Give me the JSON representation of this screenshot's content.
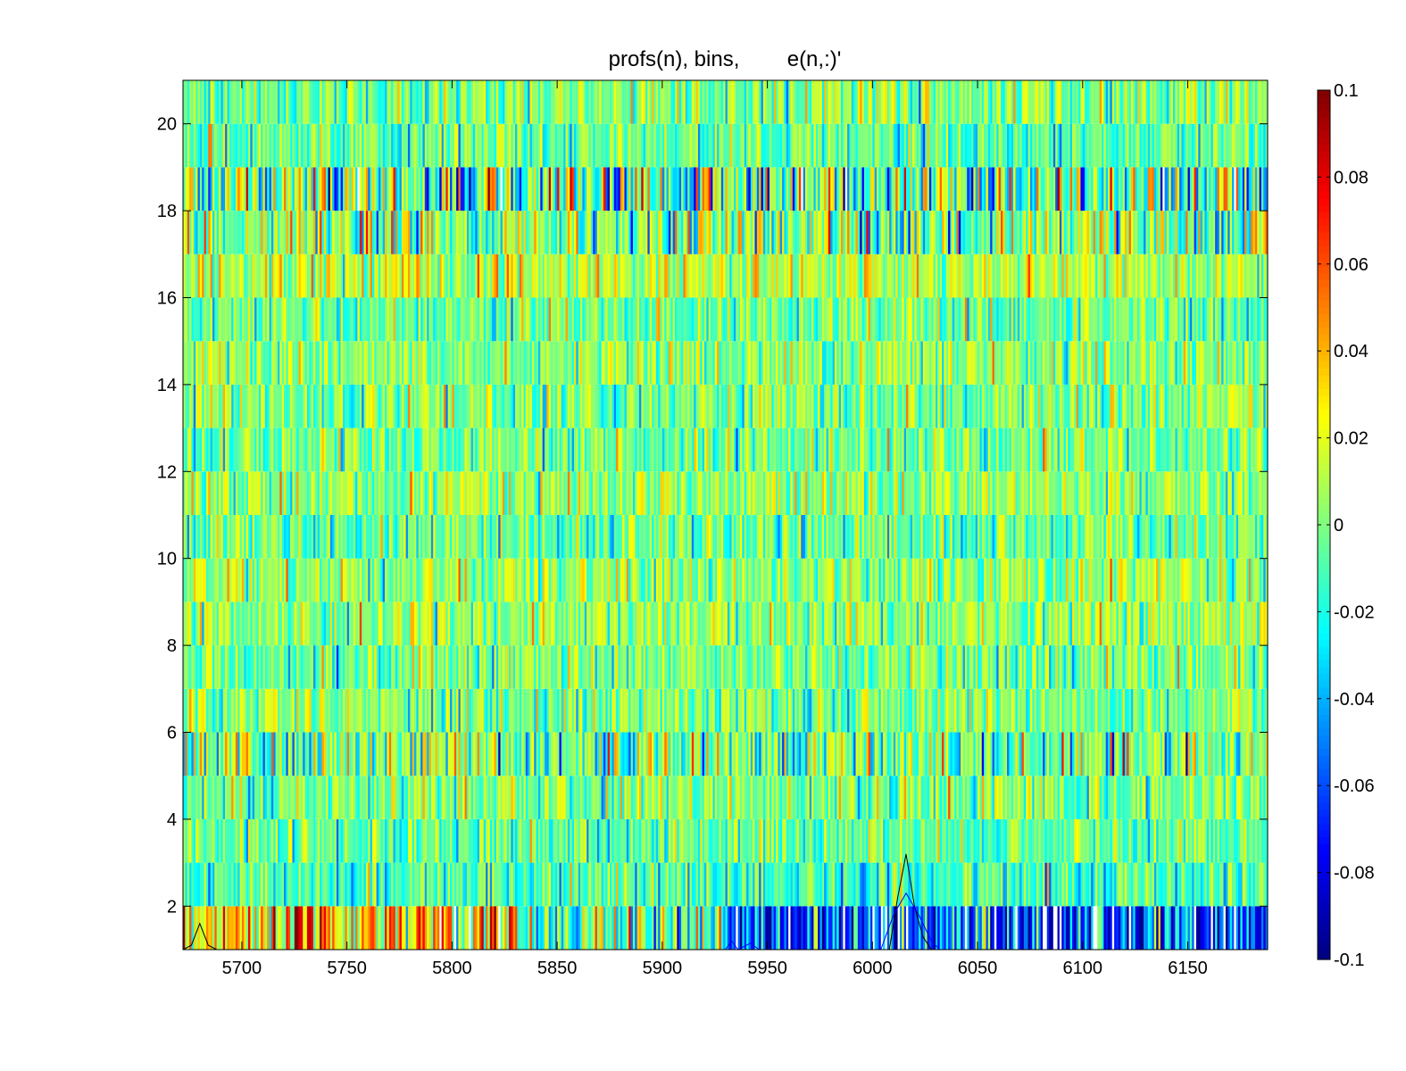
{
  "chart_data": {
    "type": "heatmap",
    "title": "profs(n), bins,        e(n,:)'",
    "xlabel": "",
    "ylabel": "",
    "xlim": [
      5672,
      6188
    ],
    "ylim": [
      1,
      21
    ],
    "xticks": [
      5700,
      5750,
      5800,
      5850,
      5900,
      5950,
      6000,
      6050,
      6100,
      6150
    ],
    "yticks": [
      2,
      4,
      6,
      8,
      10,
      12,
      14,
      16,
      18,
      20
    ],
    "n_rows": 20,
    "n_bins": 516,
    "value_range": [
      -0.1,
      0.1
    ],
    "colormap": "jet",
    "colorbar": {
      "location": "right",
      "limits": [
        -0.1,
        0.1
      ],
      "ticks": [
        "0.1",
        "0.08",
        "0.06",
        "0.04",
        "0.02",
        "0",
        "-0.02",
        "-0.04",
        "-0.06",
        "-0.08",
        "-0.1"
      ]
    },
    "row_profiles": [
      {
        "row": 1,
        "x_range": [
          5672,
          5830
        ],
        "mean": 0.035
      },
      {
        "row": 1,
        "x_range": [
          5830,
          5930
        ],
        "mean": -0.005
      },
      {
        "row": 1,
        "x_range": [
          5930,
          6188
        ],
        "mean": -0.06
      },
      {
        "row": 2,
        "mean": -0.012
      },
      {
        "row": 3,
        "mean": -0.005
      },
      {
        "row": 4,
        "mean": 0.0
      },
      {
        "row": 5,
        "mean": 0.0
      },
      {
        "row": 6,
        "mean": 0.0
      },
      {
        "row": 7,
        "mean": -0.002
      },
      {
        "row": 8,
        "mean": 0.004
      },
      {
        "row": 9,
        "mean": 0.004
      },
      {
        "row": 10,
        "mean": -0.004
      },
      {
        "row": 11,
        "mean": 0.003
      },
      {
        "row": 12,
        "mean": -0.003
      },
      {
        "row": 13,
        "mean": 0.0
      },
      {
        "row": 14,
        "mean": 0.003
      },
      {
        "row": 15,
        "mean": -0.004
      },
      {
        "row": 16,
        "mean": 0.012
      },
      {
        "row": 17,
        "mean": 0.0
      },
      {
        "row": 18,
        "mean": -0.006
      },
      {
        "row": 19,
        "mean": -0.006
      },
      {
        "row": 20,
        "mean": 0.0
      }
    ],
    "overlay_lines": [
      {
        "color": "#000000",
        "points": [
          [
            5672,
            1.0
          ],
          [
            5676,
            1.1
          ],
          [
            5680,
            1.6
          ],
          [
            5684,
            1.1
          ],
          [
            5688,
            1.0
          ]
        ]
      },
      {
        "color": "#000000",
        "points": [
          [
            6008,
            1.0
          ],
          [
            6012,
            2.2
          ],
          [
            6016,
            3.2
          ],
          [
            6020,
            2.0
          ],
          [
            6024,
            1.3
          ],
          [
            6028,
            1.0
          ]
        ]
      },
      {
        "color": "#0000ff",
        "points": [
          [
            6004,
            1.0
          ],
          [
            6010,
            1.8
          ],
          [
            6016,
            2.3
          ],
          [
            6022,
            1.8
          ],
          [
            6028,
            1.2
          ],
          [
            6032,
            1.0
          ]
        ]
      },
      {
        "color": "#0000ff",
        "points": [
          [
            5930,
            1.0
          ],
          [
            5933,
            1.2
          ],
          [
            5936,
            1.0
          ],
          [
            5942,
            1.15
          ],
          [
            5946,
            1.0
          ]
        ]
      }
    ]
  }
}
